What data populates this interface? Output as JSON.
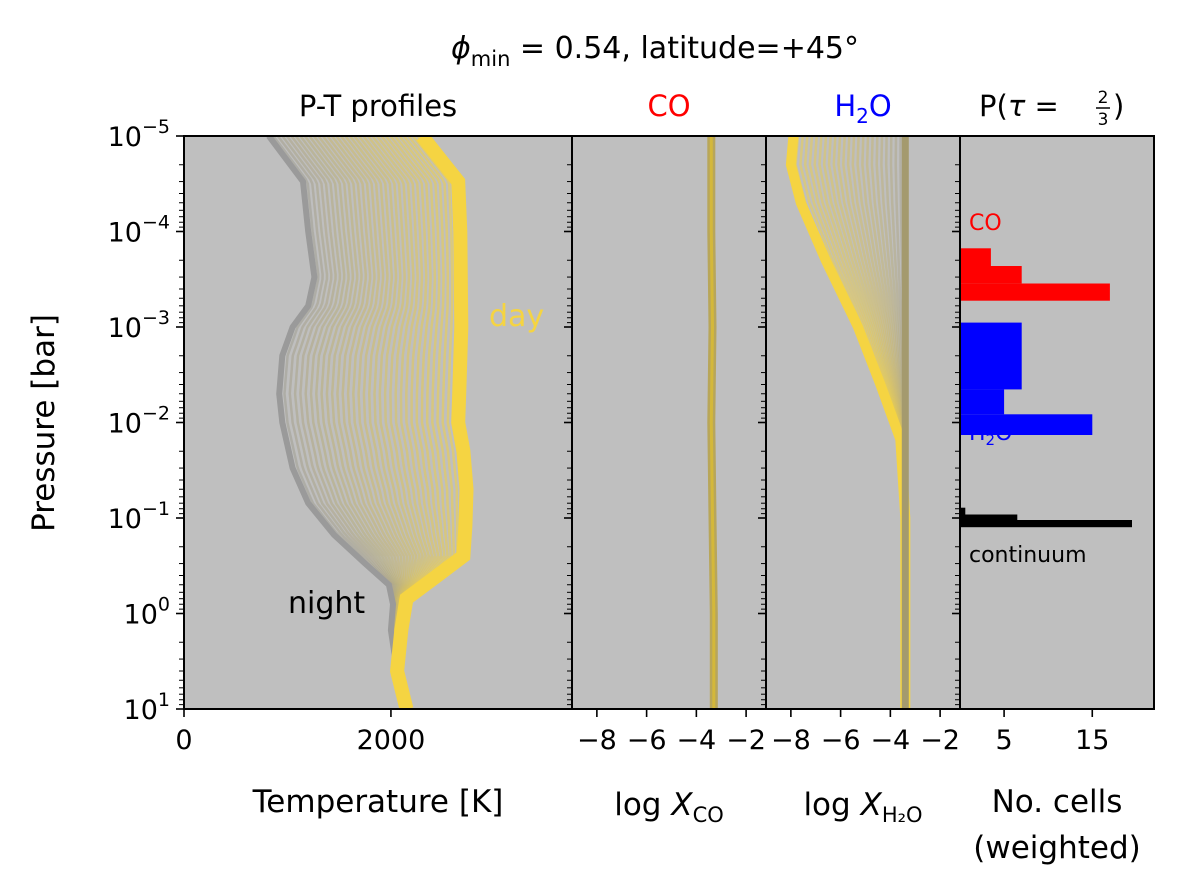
{
  "figure": {
    "title_parts": {
      "phi": "ϕ",
      "sub": "min",
      "rest": " = 0.54, latitude=+45°"
    }
  },
  "colors": {
    "panel_bg": "#bfbfbf",
    "day": "#f5d442",
    "night": "#999999",
    "co": "#ff0000",
    "h2o": "#0000ff",
    "continuum": "#000000"
  },
  "y_axis": {
    "label": "Pressure [bar]",
    "scale": "log",
    "range": [
      10,
      1e-05
    ],
    "ticks": [
      {
        "base": "10",
        "exp": "−5"
      },
      {
        "base": "10",
        "exp": "−4"
      },
      {
        "base": "10",
        "exp": "−3"
      },
      {
        "base": "10",
        "exp": "−2"
      },
      {
        "base": "10",
        "exp": "−1"
      },
      {
        "base": "10",
        "exp": "0"
      },
      {
        "base": "10",
        "exp": "1"
      }
    ]
  },
  "chart_data": [
    {
      "type": "line",
      "title": "P-T profiles",
      "xlabel": "Temperature [K]",
      "xlim": [
        0,
        3750
      ],
      "xticks": [
        "0",
        "2000"
      ],
      "annotations": {
        "day": "day",
        "night": "night"
      },
      "series": [
        {
          "label_key": "night",
          "temperature": [
            820,
            1150,
            1200,
            1260,
            1200,
            1050,
            950,
            920,
            950,
            1050,
            1200,
            1450,
            1750,
            1980,
            2020,
            2000,
            2060,
            2130
          ],
          "pressure": [
            1e-05,
            3e-05,
            0.0001,
            0.0003,
            0.0006,
            0.001,
            0.002,
            0.005,
            0.01,
            0.03,
            0.07,
            0.15,
            0.3,
            0.5,
            0.8,
            1.5,
            4,
            10
          ]
        },
        {
          "label_key": "day",
          "temperature": [
            2300,
            2520,
            2650,
            2670,
            2680,
            2660,
            2650,
            2700,
            2730,
            2720,
            2700,
            2450,
            2150,
            2100,
            2060,
            2150
          ],
          "pressure": [
            1e-05,
            2e-05,
            3e-05,
            0.0001,
            0.001,
            0.005,
            0.01,
            0.02,
            0.05,
            0.12,
            0.25,
            0.4,
            0.7,
            1.5,
            4,
            10
          ]
        }
      ]
    },
    {
      "type": "line",
      "title": "CO",
      "xlabel_main": "log ",
      "xlabel_var": "X",
      "xlabel_sub": "CO",
      "xlim": [
        -9,
        -1.2
      ],
      "xticks": [
        "−8",
        "−6",
        "−4",
        "−2"
      ],
      "series": [
        {
          "name": "",
          "logX": [
            -3.4,
            -3.4,
            -3.35,
            -3.4,
            -3.35,
            -3.3,
            -3.3
          ],
          "pressure": [
            1e-05,
            0.0001,
            0.001,
            0.01,
            0.1,
            1,
            10
          ]
        }
      ]
    },
    {
      "type": "line",
      "title_main": "H",
      "title_sub": "2",
      "title_tail": "O",
      "xlabel_main": "log ",
      "xlabel_var": "X",
      "xlabel_sub": "H₂O",
      "xlim": [
        -9,
        -1.2
      ],
      "xticks": [
        "−8",
        "−6",
        "−4",
        "−2"
      ],
      "series": [
        {
          "label_key": "night",
          "logX": [
            -3.4,
            -3.4,
            -3.4,
            -3.4,
            -3.4,
            -3.4,
            -3.4
          ],
          "pressure": [
            1e-05,
            0.0001,
            0.001,
            0.01,
            0.1,
            1,
            10
          ]
        },
        {
          "label_key": "day",
          "logX": [
            -7.9,
            -8.0,
            -7.6,
            -6.6,
            -5.3,
            -4.4,
            -3.6,
            -3.4,
            -3.4
          ],
          "pressure": [
            1e-05,
            2e-05,
            5e-05,
            0.0002,
            0.001,
            0.004,
            0.015,
            0.1,
            10
          ]
        }
      ]
    },
    {
      "type": "bar",
      "orientation": "horizontal",
      "title_pre": "P(",
      "title_tau": "τ",
      "title_eq": " = ",
      "title_num": "2",
      "title_den": "3",
      "title_post": ")",
      "xlabel_line1": "No. cells",
      "xlabel_line2": "(weighted)",
      "xlim": [
        0,
        22
      ],
      "xticks": [
        "5",
        "15"
      ],
      "groups": [
        {
          "label": "CO",
          "color_key": "co",
          "bins": [
            {
              "p_top": 0.00015,
              "p_bot": 0.00023,
              "count": 3.5
            },
            {
              "p_top": 0.00023,
              "p_bot": 0.00035,
              "count": 7
            },
            {
              "p_top": 0.00035,
              "p_bot": 0.00053,
              "count": 17
            }
          ]
        },
        {
          "label_main": "H",
          "label_sub": "2",
          "label_tail": "O",
          "color_key": "h2o",
          "bins": [
            {
              "p_top": 0.0009,
              "p_bot": 0.0045,
              "count": 7
            },
            {
              "p_top": 0.0045,
              "p_bot": 0.0082,
              "count": 5
            },
            {
              "p_top": 0.0082,
              "p_bot": 0.0135,
              "count": 15
            }
          ]
        },
        {
          "label": "continuum",
          "color_key": "continuum",
          "bins": [
            {
              "p_top": 0.078,
              "p_bot": 0.092,
              "count": 0.6
            },
            {
              "p_top": 0.092,
              "p_bot": 0.105,
              "count": 6.5
            },
            {
              "p_top": 0.105,
              "p_bot": 0.125,
              "count": 19.5
            }
          ]
        }
      ]
    }
  ]
}
